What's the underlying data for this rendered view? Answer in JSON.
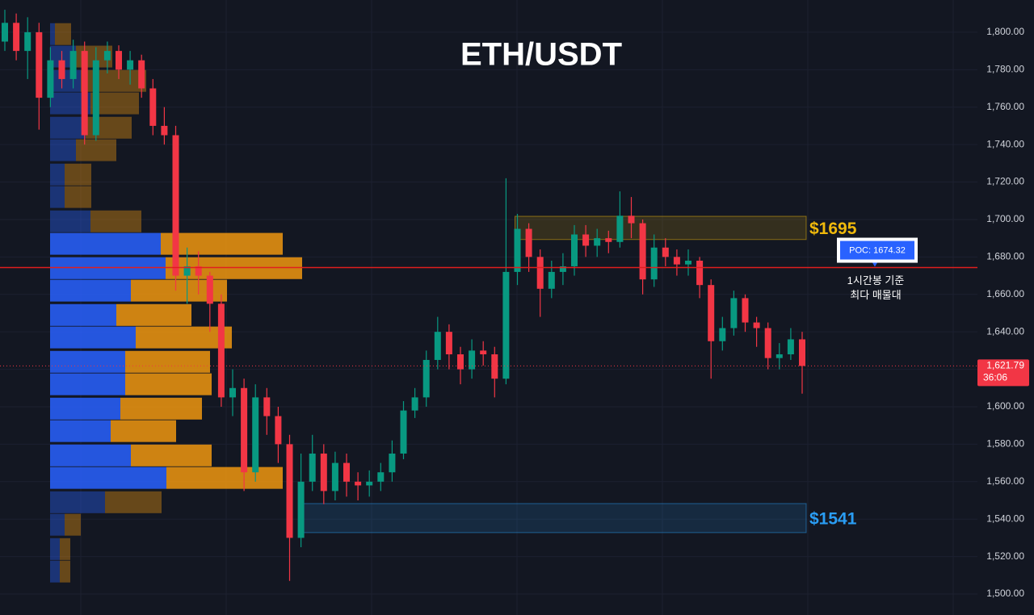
{
  "chart_data": {
    "type": "candlestick",
    "title": "ETH/USDT",
    "ylim": [
      1488.8,
      1817.2
    ],
    "yticks": [
      {
        "value": 1500,
        "label": "1,500.00"
      },
      {
        "value": 1520,
        "label": "1,520.00"
      },
      {
        "value": 1540,
        "label": "1,540.00"
      },
      {
        "value": 1560,
        "label": "1,560.00"
      },
      {
        "value": 1580,
        "label": "1,580.00"
      },
      {
        "value": 1600,
        "label": "1,600.00"
      },
      {
        "value": 1620,
        "label": "1,620.00"
      },
      {
        "value": 1640,
        "label": "1,640.00"
      },
      {
        "value": 1660,
        "label": "1,660.00"
      },
      {
        "value": 1680,
        "label": "1,680.00"
      },
      {
        "value": 1700,
        "label": "1,700.00"
      },
      {
        "value": 1720,
        "label": "1,720.00"
      },
      {
        "value": 1740,
        "label": "1,740.00"
      },
      {
        "value": 1760,
        "label": "1,760.00"
      },
      {
        "value": 1780,
        "label": "1,780.00"
      },
      {
        "value": 1800,
        "label": "1,800.00"
      }
    ],
    "grid": true,
    "up_color": "#089981",
    "down_color": "#f23645",
    "open": [
      1795,
      1805,
      1790,
      1800,
      1765,
      1785,
      1775,
      1790,
      1745,
      1785,
      1790,
      1780,
      1785,
      1770,
      1750,
      1745,
      1670,
      1675,
      1670,
      1655,
      1605,
      1610,
      1565,
      1605,
      1595,
      1580,
      1530,
      1560,
      1575,
      1555,
      1570,
      1560,
      1558,
      1560,
      1565,
      1575,
      1598,
      1605,
      1625,
      1640,
      1628,
      1620,
      1630,
      1628,
      1615,
      1672,
      1695,
      1680,
      1663,
      1672,
      1675,
      1692,
      1686,
      1690,
      1688,
      1702,
      1698,
      1668,
      1685,
      1680,
      1676,
      1678,
      1665,
      1635,
      1642,
      1658,
      1645,
      1642,
      1626,
      1628,
      1636
    ],
    "high": [
      1812,
      1810,
      1808,
      1805,
      1792,
      1790,
      1796,
      1795,
      1792,
      1795,
      1793,
      1790,
      1788,
      1775,
      1760,
      1750,
      1685,
      1683,
      1672,
      1660,
      1620,
      1615,
      1612,
      1610,
      1600,
      1585,
      1575,
      1585,
      1580,
      1576,
      1575,
      1565,
      1566,
      1570,
      1582,
      1603,
      1610,
      1630,
      1648,
      1644,
      1632,
      1636,
      1635,
      1632,
      1722,
      1703,
      1698,
      1684,
      1678,
      1682,
      1697,
      1697,
      1695,
      1694,
      1715,
      1712,
      1700,
      1692,
      1690,
      1684,
      1684,
      1680,
      1668,
      1648,
      1662,
      1660,
      1648,
      1645,
      1634,
      1642,
      1640
    ],
    "low": [
      1790,
      1785,
      1775,
      1748,
      1760,
      1770,
      1770,
      1740,
      1742,
      1778,
      1775,
      1772,
      1765,
      1745,
      1740,
      1662,
      1655,
      1660,
      1640,
      1600,
      1595,
      1555,
      1560,
      1585,
      1570,
      1507,
      1525,
      1555,
      1548,
      1550,
      1552,
      1550,
      1552,
      1555,
      1560,
      1572,
      1594,
      1600,
      1620,
      1620,
      1612,
      1615,
      1622,
      1605,
      1612,
      1665,
      1672,
      1648,
      1658,
      1665,
      1670,
      1680,
      1680,
      1682,
      1685,
      1690,
      1660,
      1664,
      1675,
      1670,
      1670,
      1658,
      1615,
      1630,
      1638,
      1640,
      1632,
      1620,
      1620,
      1625,
      1607
    ],
    "close": [
      1805,
      1790,
      1800,
      1765,
      1785,
      1775,
      1790,
      1745,
      1785,
      1790,
      1780,
      1785,
      1770,
      1750,
      1745,
      1670,
      1675,
      1670,
      1655,
      1605,
      1610,
      1565,
      1605,
      1595,
      1580,
      1530,
      1560,
      1575,
      1555,
      1570,
      1560,
      1558,
      1560,
      1565,
      1575,
      1598,
      1605,
      1625,
      1640,
      1628,
      1620,
      1630,
      1628,
      1615,
      1672,
      1695,
      1680,
      1663,
      1672,
      1675,
      1692,
      1686,
      1690,
      1688,
      1702,
      1698,
      1668,
      1685,
      1680,
      1676,
      1678,
      1665,
      1635,
      1642,
      1658,
      1645,
      1642,
      1626,
      1628,
      1636,
      1621.79
    ],
    "profile": {
      "levels": [
        1799,
        1787,
        1774,
        1762,
        1749,
        1737,
        1724,
        1712,
        1699,
        1687,
        1674,
        1662,
        1649,
        1637,
        1624,
        1612,
        1599,
        1587,
        1574,
        1562,
        1549,
        1537,
        1524,
        1512
      ],
      "up_volume": [
        6,
        32,
        38,
        50,
        44,
        32,
        18,
        18,
        50,
        137,
        143,
        100,
        82,
        106,
        93,
        93,
        87,
        75,
        100,
        144,
        68,
        18,
        12,
        12
      ],
      "down_volume": [
        20,
        45,
        81,
        60,
        57,
        50,
        33,
        33,
        63,
        151,
        169,
        119,
        93,
        119,
        105,
        107,
        101,
        81,
        100,
        144,
        70,
        20,
        13,
        13
      ],
      "up_color": "#2962ff",
      "down_color": "#f0960f",
      "value_area": [
        1560,
        1690
      ]
    },
    "zones": [
      {
        "top": 1701.7,
        "bottom": 1689.3,
        "start_index": 45,
        "label": "$1695",
        "color": "#f0b90b"
      },
      {
        "top": 1548.3,
        "bottom": 1532.8,
        "start_index": 26,
        "label": "$1541",
        "color": "#2a9df4"
      }
    ],
    "poc": {
      "value": 1674.32,
      "label": "POC: 1674.32",
      "note": [
        "1시간봉 기준",
        "최다 매물대"
      ]
    },
    "last_price": 1621.79,
    "last_price_label": "1,621.79",
    "countdown": "36:06"
  }
}
